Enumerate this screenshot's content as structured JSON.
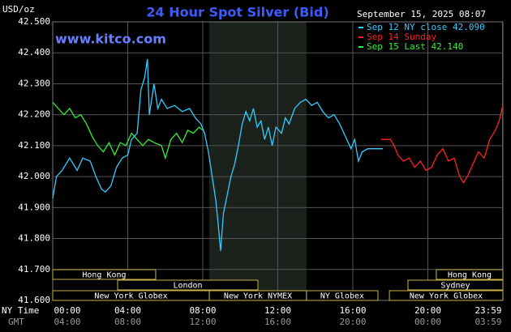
{
  "chart_data": {
    "type": "line",
    "title": "24 Hour Spot Silver (Bid)",
    "ylabel": "USD/oz",
    "site": "www.kitco.com",
    "timestamp": "September 15, 2025 08:07",
    "row_label_1": "NY Time",
    "row_label_2": "GMT",
    "xlim": [
      0,
      24
    ],
    "ylim": [
      41.6,
      42.5
    ],
    "grid": true,
    "yticks": [
      {
        "value": 42.5,
        "label": "42.500"
      },
      {
        "value": 42.4,
        "label": "42.400"
      },
      {
        "value": 42.3,
        "label": "42.300"
      },
      {
        "value": 42.2,
        "label": "42.200"
      },
      {
        "value": 42.1,
        "label": "42.100"
      },
      {
        "value": 42.0,
        "label": "42.000"
      },
      {
        "value": 41.9,
        "label": "41.900"
      },
      {
        "value": 41.8,
        "label": "41.800"
      },
      {
        "value": 41.7,
        "label": "41.700"
      },
      {
        "value": 41.6,
        "label": "41.600"
      }
    ],
    "xticks": [
      {
        "value": 0,
        "label": "00:00"
      },
      {
        "value": 4,
        "label": "04:00"
      },
      {
        "value": 8,
        "label": "08:00"
      },
      {
        "value": 12,
        "label": "12:00"
      },
      {
        "value": 16,
        "label": "16:00"
      },
      {
        "value": 20,
        "label": "20:00"
      },
      {
        "value": 23.983,
        "label": "23:59"
      }
    ],
    "xticks_gmt": [
      "04:00",
      "08:00",
      "12:00",
      "16:00",
      "20:00",
      "00:00",
      "03:59"
    ],
    "sessions": [
      [
        {
          "label": "Hong Kong",
          "start": 0,
          "end": 5.49
        },
        {
          "label": "Hong Kong",
          "start": 20.45,
          "end": 24
        }
      ],
      [
        {
          "label": "London",
          "start": 3.46,
          "end": 10.94
        },
        {
          "label": "Sydney",
          "start": 18.94,
          "end": 24
        }
      ],
      [
        {
          "label": "New York Globex",
          "start": 0,
          "end": 8.35
        },
        {
          "label": "New York NYMEX",
          "start": 8.35,
          "end": 13.53,
          "highlight": true
        },
        {
          "label": "NY Globex",
          "start": 13.53,
          "end": 17.34
        },
        {
          "label": "New York Globex",
          "start": 17.95,
          "end": 24
        }
      ]
    ],
    "series": [
      {
        "name": "Sep 12 NY close 42.090",
        "color": "#33ccff",
        "x": [
          0,
          0.2,
          0.5,
          0.9,
          1.3,
          1.6,
          2.0,
          2.3,
          2.6,
          2.8,
          3.1,
          3.4,
          3.7,
          4.0,
          4.2,
          4.5,
          4.7,
          4.9,
          5.05,
          5.15,
          5.4,
          5.6,
          5.8,
          6.1,
          6.5,
          6.9,
          7.3,
          7.6,
          7.9,
          8.1,
          8.3,
          8.5,
          8.7,
          8.8,
          8.95,
          9.1,
          9.3,
          9.5,
          9.7,
          9.9,
          10.1,
          10.3,
          10.5,
          10.7,
          10.9,
          11.1,
          11.3,
          11.5,
          11.7,
          11.9,
          12.2,
          12.4,
          12.6,
          12.9,
          13.2,
          13.5,
          13.8,
          14.1,
          14.4,
          14.7,
          15.0,
          15.3,
          15.6,
          15.9,
          16.1,
          16.3,
          16.5,
          16.8,
          17.2,
          17.6
        ],
        "values": [
          41.93,
          42.0,
          42.02,
          42.06,
          42.02,
          42.06,
          42.05,
          42.0,
          41.96,
          41.95,
          41.97,
          42.03,
          42.06,
          42.07,
          42.12,
          42.14,
          42.28,
          42.32,
          42.38,
          42.2,
          42.3,
          42.22,
          42.25,
          42.22,
          42.23,
          42.21,
          42.22,
          42.19,
          42.17,
          42.14,
          42.08,
          42.0,
          41.92,
          41.86,
          41.76,
          41.88,
          41.94,
          42.0,
          42.04,
          42.1,
          42.17,
          42.21,
          42.18,
          42.22,
          42.16,
          42.18,
          42.12,
          42.16,
          42.1,
          42.16,
          42.14,
          42.19,
          42.17,
          42.22,
          42.24,
          42.25,
          42.23,
          42.24,
          42.21,
          42.19,
          42.2,
          42.17,
          42.13,
          42.09,
          42.12,
          42.05,
          42.08,
          42.09,
          42.09,
          42.09
        ]
      },
      {
        "name": "Sep 14 Sunday",
        "color": "#ff2020",
        "x": [
          17.5,
          18.0,
          18.2,
          18.4,
          18.7,
          19.0,
          19.3,
          19.6,
          19.9,
          20.2,
          20.5,
          20.8,
          21.1,
          21.4,
          21.7,
          21.9,
          22.1,
          22.4,
          22.7,
          23.0,
          23.3,
          23.6,
          23.8,
          24.0
        ],
        "values": [
          42.12,
          42.12,
          42.1,
          42.07,
          42.05,
          42.06,
          42.03,
          42.05,
          42.02,
          42.03,
          42.07,
          42.09,
          42.05,
          42.06,
          42.0,
          41.98,
          42.0,
          42.04,
          42.08,
          42.06,
          42.12,
          42.15,
          42.18,
          42.23
        ]
      },
      {
        "name": "Sep 15 Last 42.140",
        "color": "#33ee33",
        "x": [
          0,
          0.3,
          0.6,
          0.9,
          1.2,
          1.5,
          1.8,
          2.1,
          2.4,
          2.7,
          3.0,
          3.3,
          3.6,
          3.9,
          4.2,
          4.5,
          4.8,
          5.1,
          5.4,
          5.8,
          6.0,
          6.3,
          6.6,
          6.9,
          7.2,
          7.5,
          7.8,
          8.0
        ],
        "values": [
          42.24,
          42.22,
          42.2,
          42.22,
          42.19,
          42.2,
          42.17,
          42.13,
          42.1,
          42.08,
          42.11,
          42.07,
          42.11,
          42.1,
          42.14,
          42.12,
          42.1,
          42.12,
          42.11,
          42.1,
          42.06,
          42.12,
          42.14,
          42.11,
          42.15,
          42.14,
          42.16,
          42.15
        ]
      }
    ]
  }
}
